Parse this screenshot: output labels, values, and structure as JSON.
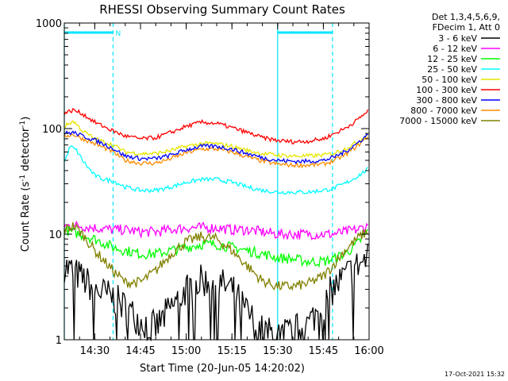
{
  "chart_data": {
    "type": "line",
    "title": "RHESSI Observing Summary Count Rates",
    "xlabel": "Start Time (20-Jun-05 14:20:02)",
    "ylabel_main": "Count Rate (s",
    "ylabel_sup1": "-1",
    "ylabel_mid": " detector",
    "ylabel_sup2": "-1",
    "ylabel_end": ")",
    "y_scale": "log",
    "ylim": [
      1,
      1000
    ],
    "xlim_minutes": [
      0,
      100
    ],
    "x_ticks": [
      {
        "label": "14:30",
        "minutes": 10
      },
      {
        "label": "14:45",
        "minutes": 25
      },
      {
        "label": "15:00",
        "minutes": 40
      },
      {
        "label": "15:15",
        "minutes": 55
      },
      {
        "label": "15:30",
        "minutes": 70
      },
      {
        "label": "15:45",
        "minutes": 85
      },
      {
        "label": "16:00",
        "minutes": 100
      }
    ],
    "y_ticks": [
      {
        "label": "1",
        "value": 1
      },
      {
        "label": "10",
        "value": 10
      },
      {
        "label": "100",
        "value": 100
      },
      {
        "label": "1000",
        "value": 1000
      }
    ],
    "legend_header": [
      "Det 1,3,4,5,6,9,",
      "FDecim 1, Att 0"
    ],
    "legend_placement": "right",
    "markers": {
      "solid_lines_minutes": [
        0,
        70
      ],
      "dashed_lines_minutes": [
        16,
        88
      ],
      "night_bars": [
        [
          0,
          16
        ],
        [
          70,
          88
        ]
      ],
      "flag_label": "N",
      "flag_at_minutes": 16,
      "color": "#00e5ff"
    },
    "series": [
      {
        "name": "3 - 6 keV",
        "color": "#000000",
        "x": [
          0,
          5,
          10,
          16,
          20,
          25,
          30,
          35,
          40,
          45,
          50,
          55,
          60,
          65,
          70,
          75,
          80,
          85,
          88,
          92,
          96,
          100
        ],
        "y": [
          5,
          4,
          3,
          2.5,
          2,
          1.5,
          1.3,
          2,
          3,
          3.6,
          3.5,
          3,
          1.8,
          1.2,
          1.1,
          1.2,
          1.4,
          2.2,
          3,
          4,
          5,
          6
        ]
      },
      {
        "name": "6 - 12 keV",
        "color": "#ff00ff",
        "x": [
          0,
          5,
          10,
          16,
          20,
          25,
          30,
          35,
          40,
          45,
          50,
          55,
          60,
          65,
          70,
          75,
          80,
          85,
          88,
          92,
          96,
          100
        ],
        "y": [
          12,
          12,
          11.5,
          11,
          11,
          10.5,
          10.5,
          11,
          11.5,
          11.5,
          11.5,
          11,
          11,
          10.5,
          10,
          10,
          10,
          10,
          10,
          10.5,
          11,
          12
        ]
      },
      {
        "name": "12 - 25 keV",
        "color": "#00ff00",
        "x": [
          0,
          5,
          10,
          16,
          20,
          25,
          30,
          35,
          40,
          45,
          50,
          55,
          60,
          65,
          70,
          75,
          80,
          85,
          88,
          92,
          96,
          100
        ],
        "y": [
          11,
          10,
          9,
          7.5,
          7,
          6.5,
          6.5,
          7,
          7.5,
          8,
          8,
          7.5,
          7,
          6.5,
          6,
          5.8,
          5.5,
          5.5,
          5.8,
          6.5,
          8,
          11
        ]
      },
      {
        "name": "25 - 50 keV",
        "color": "#00ffff",
        "x": [
          0,
          2,
          4,
          6,
          8,
          10,
          13,
          16,
          20,
          25,
          30,
          35,
          40,
          45,
          50,
          55,
          60,
          65,
          70,
          75,
          80,
          85,
          88,
          92,
          96,
          100
        ],
        "y": [
          48,
          68,
          62,
          50,
          42,
          36,
          33,
          32,
          28,
          26,
          26,
          28,
          31,
          33,
          33,
          31,
          28,
          26,
          25,
          25,
          25,
          26,
          27,
          30,
          35,
          42
        ]
      },
      {
        "name": "50 - 100 keV",
        "color": "#e6e600",
        "x": [
          0,
          3,
          6,
          10,
          16,
          20,
          25,
          30,
          35,
          40,
          45,
          50,
          55,
          60,
          65,
          70,
          75,
          80,
          85,
          88,
          92,
          96,
          100
        ],
        "y": [
          105,
          118,
          95,
          80,
          70,
          60,
          58,
          58,
          62,
          68,
          72,
          72,
          68,
          62,
          58,
          56,
          55,
          55,
          56,
          58,
          64,
          74,
          90
        ]
      },
      {
        "name": "100 - 300 keV",
        "color": "#ff0000",
        "x": [
          0,
          3,
          6,
          10,
          16,
          20,
          25,
          30,
          35,
          40,
          45,
          50,
          55,
          60,
          65,
          70,
          75,
          80,
          85,
          88,
          92,
          96,
          100
        ],
        "y": [
          140,
          150,
          138,
          115,
          95,
          85,
          80,
          82,
          92,
          105,
          115,
          112,
          102,
          92,
          82,
          77,
          75,
          76,
          80,
          88,
          100,
          120,
          150
        ]
      },
      {
        "name": "300 - 800 keV",
        "color": "#0000ff",
        "x": [
          0,
          3,
          6,
          10,
          16,
          20,
          25,
          30,
          35,
          40,
          45,
          50,
          55,
          60,
          65,
          70,
          75,
          80,
          85,
          88,
          92,
          96,
          100
        ],
        "y": [
          90,
          92,
          85,
          78,
          65,
          55,
          52,
          52,
          56,
          63,
          68,
          68,
          64,
          58,
          53,
          50,
          49,
          49,
          50,
          53,
          60,
          72,
          90
        ]
      },
      {
        "name": "800 - 7000 keV",
        "color": "#ff8c00",
        "x": [
          0,
          3,
          6,
          10,
          16,
          20,
          25,
          30,
          35,
          40,
          45,
          50,
          55,
          60,
          65,
          70,
          75,
          80,
          85,
          88,
          92,
          96,
          100
        ],
        "y": [
          85,
          88,
          80,
          72,
          60,
          50,
          47,
          47,
          52,
          59,
          64,
          64,
          60,
          54,
          49,
          46,
          45,
          45,
          46,
          49,
          56,
          68,
          86
        ]
      },
      {
        "name": "7000 - 15000 keV",
        "color": "#808000",
        "x": [
          0,
          3,
          6,
          10,
          16,
          20,
          25,
          30,
          35,
          40,
          45,
          50,
          55,
          60,
          65,
          70,
          75,
          80,
          85,
          88,
          92,
          96,
          100
        ],
        "y": [
          11,
          12,
          10,
          7,
          4.5,
          3.5,
          3.5,
          4.5,
          6.5,
          8.5,
          9.5,
          9,
          7,
          5,
          3.6,
          3.2,
          3.2,
          3.4,
          4,
          5,
          7,
          9,
          11
        ]
      }
    ]
  },
  "timestamp": "17-Oct-2021 15:32"
}
